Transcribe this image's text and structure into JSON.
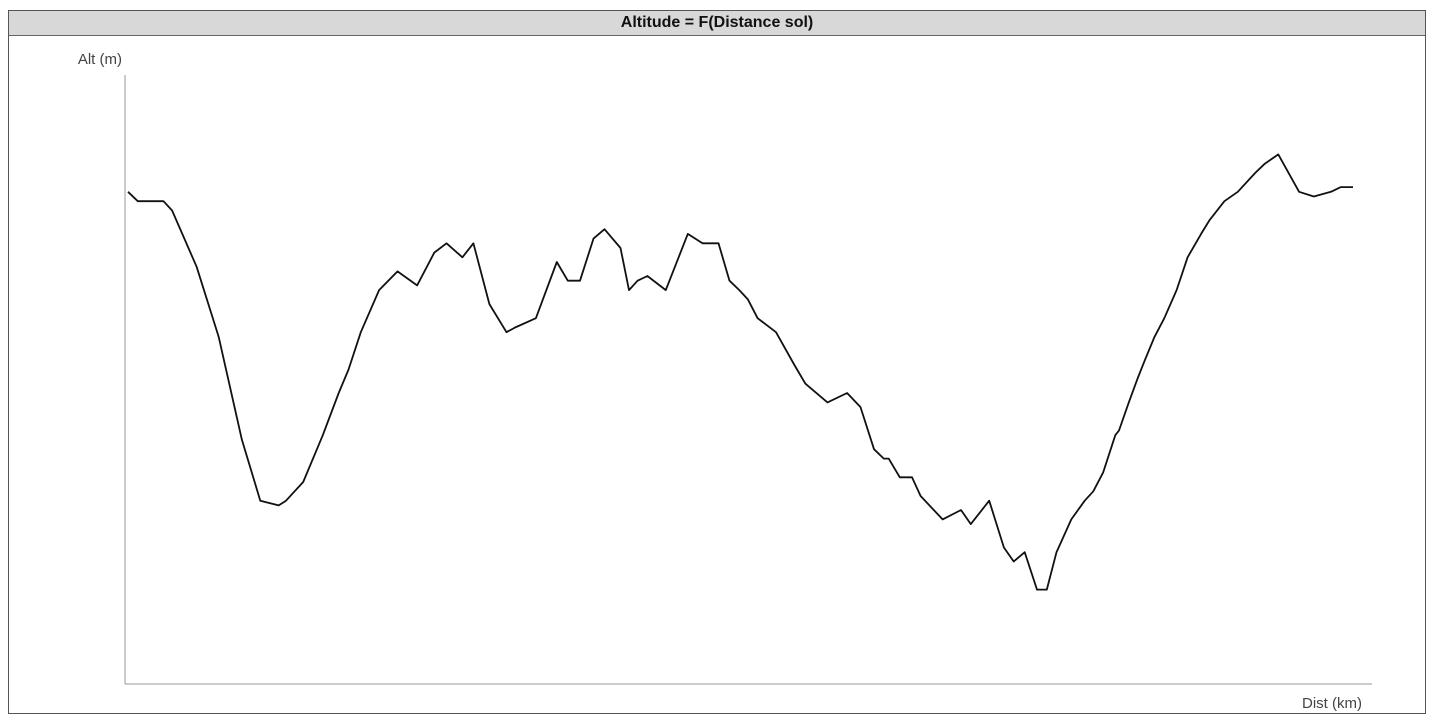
{
  "chart_data": {
    "type": "line",
    "title": "Altitude = F(Distance sol)",
    "ylabel": "Alt (m)",
    "xlabel": "Dist (km)",
    "grid": false,
    "legend": "none",
    "xlim": [
      0,
      100
    ],
    "ylim": [
      0,
      100
    ],
    "series": [
      {
        "color": "#111111",
        "x": [
          0,
          0.8,
          2.9,
          3.6,
          5.6,
          7.4,
          9.3,
          10.8,
          12.3,
          12.9,
          14.3,
          15.9,
          17.2,
          18.0,
          19.0,
          20.5,
          22.0,
          23.6,
          25.0,
          26.0,
          27.3,
          28.2,
          29.5,
          30.9,
          31.6,
          33.3,
          35.0,
          35.9,
          36.9,
          38.0,
          38.9,
          40.2,
          40.9,
          41.6,
          42.4,
          43.9,
          45.7,
          46.9,
          48.2,
          49.1,
          49.9,
          50.6,
          51.4,
          52.9,
          54.4,
          55.3,
          57.1,
          58.7,
          59.8,
          60.9,
          61.7,
          62.1,
          63.0,
          64.0,
          64.7,
          66.5,
          68.0,
          68.8,
          70.3,
          71.5,
          72.3,
          73.2,
          74.2,
          75.0,
          75.8,
          77.0,
          78.1,
          78.8,
          79.6,
          80.6,
          80.9,
          81.7,
          82.4,
          83.0,
          83.8,
          84.6,
          85.6,
          86.5,
          87.6,
          88.3,
          89.5,
          90.6,
          92.0,
          92.8,
          93.9,
          95.6,
          96.8,
          98.2,
          99.0,
          99.8,
          100.0
        ],
        "y": [
          90,
          88,
          88,
          86,
          74,
          59,
          37,
          24,
          23,
          24,
          28,
          38,
          47,
          52,
          60,
          69,
          73,
          70,
          77,
          79,
          76,
          79,
          66,
          60,
          61,
          63,
          75,
          71,
          71,
          80,
          82,
          78,
          69,
          71,
          72,
          69,
          81,
          79,
          79,
          71,
          69,
          67,
          63,
          60,
          53,
          49,
          45,
          47,
          44,
          35,
          33,
          33,
          29,
          29,
          25,
          20,
          22,
          19,
          24,
          14,
          11,
          13,
          5,
          5,
          13,
          20,
          24,
          26,
          30,
          38,
          39,
          45,
          50,
          54,
          59,
          63,
          69,
          76,
          81,
          84,
          88,
          90,
          94,
          96,
          98,
          90,
          89,
          90,
          91,
          91,
          91
        ]
      }
    ]
  }
}
